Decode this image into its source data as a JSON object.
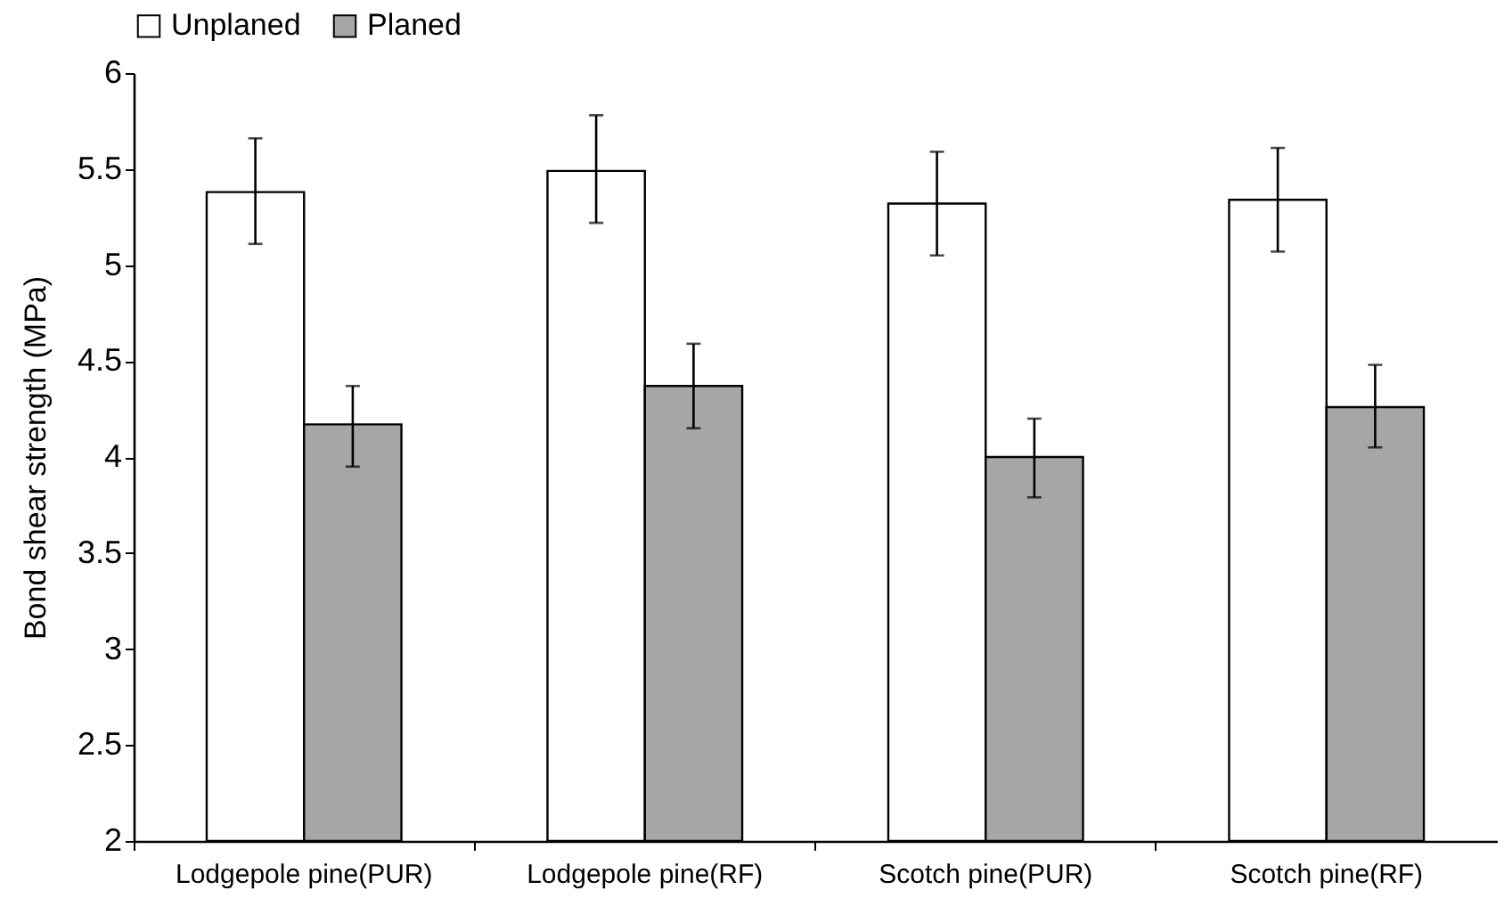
{
  "chart_data": {
    "type": "bar",
    "categories": [
      "Lodgepole pine(PUR)",
      "Lodgepole pine(RF)",
      "Scotch pine(PUR)",
      "Scotch pine(RF)"
    ],
    "ylabel": "Bond shear strength (MPa)",
    "ylim": [
      2,
      6
    ],
    "yticks": [
      2,
      2.5,
      3,
      3.5,
      4,
      4.5,
      5,
      5.5,
      6
    ],
    "grid": false,
    "legend": "top",
    "series": [
      {
        "name": "Unplaned",
        "color": "#ffffff",
        "values": [
          5.38,
          5.49,
          5.32,
          5.34
        ],
        "errors": [
          [
            5.11,
            5.66
          ],
          [
            5.22,
            5.78
          ],
          [
            5.05,
            5.59
          ],
          [
            5.07,
            5.61
          ]
        ]
      },
      {
        "name": "Planed",
        "color": "#a6a6a6",
        "values": [
          4.17,
          4.37,
          4.0,
          4.26
        ],
        "errors": [
          [
            3.95,
            4.37
          ],
          [
            4.15,
            4.59
          ],
          [
            3.79,
            4.2
          ],
          [
            4.05,
            4.48
          ]
        ]
      }
    ]
  }
}
